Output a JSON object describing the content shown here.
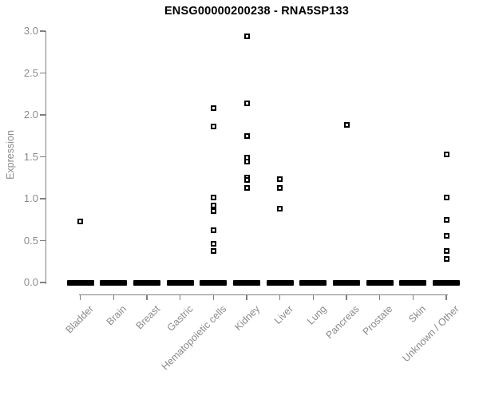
{
  "chart_data": {
    "type": "scatter",
    "title": "ENSG00000200238 - RNA5SP133",
    "xlabel": "",
    "ylabel": "Expression",
    "ylim": [
      0.0,
      3.0
    ],
    "ytick_labels": [
      "0.0",
      "0.5",
      "1.0",
      "1.5",
      "2.0",
      "2.5",
      "3.0"
    ],
    "grid": false,
    "legend": "none",
    "point_shape": "open-square",
    "point_color": "#000000",
    "axis_color": "#808080",
    "label_color": "#8a8a8a",
    "categories": [
      "Bladder",
      "Brain",
      "Breast",
      "Gastric",
      "Hematopoietic cells",
      "Kidney",
      "Liver",
      "Lung",
      "Pancreas",
      "Prostate",
      "Skin",
      "Unknown / Other"
    ],
    "series": [
      {
        "category": "Bladder",
        "nonzero_values": [
          0.73
        ],
        "zero_cluster": true
      },
      {
        "category": "Brain",
        "nonzero_values": [],
        "zero_cluster": true
      },
      {
        "category": "Breast",
        "nonzero_values": [],
        "zero_cluster": true
      },
      {
        "category": "Gastric",
        "nonzero_values": [],
        "zero_cluster": true
      },
      {
        "category": "Hematopoietic cells",
        "nonzero_values": [
          2.08,
          1.86,
          1.01,
          0.92,
          0.85,
          0.62,
          0.46,
          0.38
        ],
        "zero_cluster": true
      },
      {
        "category": "Kidney",
        "nonzero_values": [
          2.94,
          2.14,
          1.75,
          1.49,
          1.44,
          1.25,
          1.22,
          1.13
        ],
        "zero_cluster": true
      },
      {
        "category": "Liver",
        "nonzero_values": [
          1.23,
          1.13,
          0.88
        ],
        "zero_cluster": true
      },
      {
        "category": "Lung",
        "nonzero_values": [],
        "zero_cluster": true
      },
      {
        "category": "Pancreas",
        "nonzero_values": [
          1.88
        ],
        "zero_cluster": true
      },
      {
        "category": "Prostate",
        "nonzero_values": [],
        "zero_cluster": true
      },
      {
        "category": "Skin",
        "nonzero_values": [],
        "zero_cluster": true
      },
      {
        "category": "Unknown / Other",
        "nonzero_values": [
          1.53,
          1.01,
          0.75,
          0.56,
          0.38,
          0.28
        ],
        "zero_cluster": true
      }
    ],
    "zero_cluster_note": "Each category shows a dense cluster of points at expression 0 forming a thick black dash"
  }
}
